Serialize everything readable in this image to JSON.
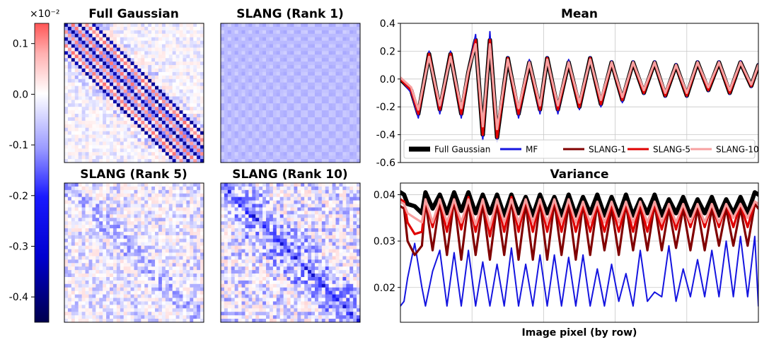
{
  "colors": {
    "full_gaussian": "#000000",
    "mf": "#1515e0",
    "slang_1": "#800000",
    "slang_5": "#e00000",
    "slang_10": "#f7a0a0",
    "heatmap_low": "#00004d",
    "heatmap_mid": "#ffffff",
    "heatmap_high": "#ff5555"
  },
  "chart_data": [
    {
      "type": "heatmap",
      "panel": "colorbar",
      "scale_label": "×10⁻²",
      "range": [
        -0.45,
        0.14
      ],
      "ticks": [
        0.1,
        0.0,
        -0.1,
        -0.2,
        -0.3,
        -0.4
      ],
      "tick_labels": [
        "0.1",
        "0.0",
        "-0.1",
        "-0.2",
        "-0.3",
        "-0.4"
      ]
    },
    {
      "type": "heatmap",
      "panel": "full",
      "title": "Full Gaussian",
      "pattern": "strong-diagonal-bands"
    },
    {
      "type": "heatmap",
      "panel": "rank1",
      "title": "SLANG (Rank 1)",
      "pattern": "faint-grid"
    },
    {
      "type": "heatmap",
      "panel": "rank5",
      "title": "SLANG (Rank 5)",
      "pattern": "weak-diagonal"
    },
    {
      "type": "heatmap",
      "panel": "rank10",
      "title": "SLANG (Rank 10)",
      "pattern": "medium-diagonal"
    },
    {
      "type": "line",
      "panel": "mean",
      "title": "Mean",
      "ylim": [
        -0.6,
        0.4
      ],
      "yticks": [
        0.4,
        0.2,
        0.0,
        -0.2,
        -0.4,
        -0.6
      ],
      "ytick_labels": [
        "0.4",
        "0.2",
        "0.0",
        "-0.2",
        "-0.4",
        "-0.6"
      ],
      "xlim": [
        0,
        100
      ],
      "grid": true,
      "legend_position": "lower-center",
      "series_order": [
        "Full Gaussian",
        "MF",
        "SLANG-1",
        "SLANG-5",
        "SLANG-10"
      ],
      "x": [
        0,
        3,
        5,
        8,
        11,
        14,
        17,
        19,
        21,
        23,
        25,
        27,
        30,
        33,
        36,
        39,
        41,
        44,
        47,
        50,
        53,
        56,
        59,
        62,
        65,
        68,
        71,
        74,
        77,
        80,
        83,
        86,
        89,
        92,
        95,
        98,
        100
      ],
      "series": [
        {
          "name": "Full Gaussian",
          "values": [
            0.0,
            -0.08,
            -0.25,
            0.18,
            -0.22,
            0.18,
            -0.25,
            0.05,
            0.28,
            -0.4,
            0.28,
            -0.42,
            0.15,
            -0.25,
            0.12,
            -0.22,
            0.15,
            -0.22,
            0.12,
            -0.2,
            0.15,
            -0.18,
            0.12,
            -0.15,
            0.12,
            -0.1,
            0.12,
            -0.12,
            0.1,
            -0.12,
            0.12,
            -0.08,
            0.12,
            -0.1,
            0.12,
            -0.05,
            0.1
          ]
        },
        {
          "name": "MF",
          "values": [
            0.0,
            -0.1,
            -0.28,
            0.2,
            -0.25,
            0.2,
            -0.28,
            0.06,
            0.32,
            -0.44,
            0.34,
            -0.45,
            0.16,
            -0.28,
            0.14,
            -0.25,
            0.16,
            -0.25,
            0.14,
            -0.22,
            0.16,
            -0.2,
            0.13,
            -0.17,
            0.13,
            -0.11,
            0.13,
            -0.13,
            0.11,
            -0.13,
            0.13,
            -0.09,
            0.13,
            -0.11,
            0.13,
            -0.06,
            0.11
          ]
        },
        {
          "name": "SLANG-1",
          "values": [
            0.0,
            -0.08,
            -0.25,
            0.18,
            -0.22,
            0.18,
            -0.25,
            0.05,
            0.28,
            -0.4,
            0.28,
            -0.42,
            0.15,
            -0.25,
            0.12,
            -0.22,
            0.15,
            -0.22,
            0.12,
            -0.2,
            0.15,
            -0.18,
            0.12,
            -0.15,
            0.12,
            -0.1,
            0.12,
            -0.12,
            0.1,
            -0.12,
            0.12,
            -0.08,
            0.12,
            -0.1,
            0.12,
            -0.05,
            0.1
          ]
        },
        {
          "name": "SLANG-5",
          "values": [
            0.0,
            -0.08,
            -0.25,
            0.18,
            -0.22,
            0.18,
            -0.25,
            0.05,
            0.28,
            -0.4,
            0.28,
            -0.42,
            0.15,
            -0.25,
            0.12,
            -0.22,
            0.15,
            -0.22,
            0.12,
            -0.2,
            0.15,
            -0.18,
            0.12,
            -0.15,
            0.12,
            -0.1,
            0.12,
            -0.12,
            0.1,
            -0.12,
            0.12,
            -0.08,
            0.12,
            -0.1,
            0.12,
            -0.05,
            0.1
          ]
        },
        {
          "name": "SLANG-10",
          "values": [
            0.01,
            -0.06,
            -0.22,
            0.16,
            -0.19,
            0.16,
            -0.21,
            0.06,
            0.25,
            -0.34,
            0.25,
            -0.36,
            0.14,
            -0.21,
            0.12,
            -0.19,
            0.14,
            -0.19,
            0.12,
            -0.17,
            0.14,
            -0.15,
            0.12,
            -0.13,
            0.12,
            -0.08,
            0.12,
            -0.1,
            0.1,
            -0.1,
            0.12,
            -0.06,
            0.12,
            -0.08,
            0.12,
            -0.04,
            0.1
          ]
        }
      ]
    },
    {
      "type": "line",
      "panel": "variance",
      "title": "Variance",
      "xlabel": "Image pixel (by row)",
      "ylim": [
        0.0125,
        0.0425
      ],
      "yticks": [
        0.04,
        0.03,
        0.02
      ],
      "ytick_labels": [
        "0.04",
        "0.03",
        "0.02"
      ],
      "xlim": [
        0,
        100
      ],
      "grid": true,
      "x": [
        0,
        1,
        2,
        4,
        6,
        7,
        9,
        11,
        13,
        15,
        17,
        19,
        21,
        23,
        25,
        27,
        29,
        31,
        33,
        35,
        37,
        39,
        41,
        43,
        45,
        47,
        49,
        51,
        53,
        55,
        57,
        59,
        61,
        63,
        65,
        67,
        69,
        71,
        73,
        75,
        77,
        79,
        81,
        83,
        85,
        87,
        89,
        91,
        93,
        95,
        97,
        99,
        100
      ],
      "series": [
        {
          "name": "Full Gaussian",
          "values": [
            0.0405,
            0.04,
            0.038,
            0.0375,
            0.036,
            0.0405,
            0.037,
            0.04,
            0.036,
            0.0405,
            0.0365,
            0.0405,
            0.036,
            0.04,
            0.036,
            0.04,
            0.0355,
            0.04,
            0.036,
            0.0395,
            0.0355,
            0.04,
            0.036,
            0.0395,
            0.0355,
            0.04,
            0.0355,
            0.0395,
            0.036,
            0.04,
            0.0355,
            0.0395,
            0.0355,
            0.04,
            0.0355,
            0.039,
            0.036,
            0.04,
            0.0355,
            0.039,
            0.036,
            0.0395,
            0.0355,
            0.039,
            0.036,
            0.0395,
            0.0355,
            0.039,
            0.036,
            0.0395,
            0.036,
            0.0405,
            0.04
          ]
        },
        {
          "name": "MF",
          "values": [
            0.016,
            0.017,
            0.022,
            0.0295,
            0.02,
            0.016,
            0.0235,
            0.028,
            0.016,
            0.0275,
            0.016,
            0.028,
            0.016,
            0.0255,
            0.016,
            0.025,
            0.016,
            0.0285,
            0.016,
            0.025,
            0.016,
            0.027,
            0.016,
            0.027,
            0.016,
            0.0265,
            0.016,
            0.027,
            0.016,
            0.024,
            0.016,
            0.025,
            0.017,
            0.023,
            0.016,
            0.028,
            0.017,
            0.019,
            0.018,
            0.029,
            0.017,
            0.024,
            0.018,
            0.026,
            0.018,
            0.028,
            0.018,
            0.03,
            0.018,
            0.031,
            0.018,
            0.031,
            0.016
          ]
        },
        {
          "name": "SLANG-1",
          "values": [
            0.0375,
            0.037,
            0.03,
            0.027,
            0.029,
            0.0385,
            0.028,
            0.0385,
            0.027,
            0.039,
            0.026,
            0.0385,
            0.027,
            0.038,
            0.026,
            0.038,
            0.027,
            0.039,
            0.026,
            0.038,
            0.026,
            0.0385,
            0.026,
            0.0385,
            0.027,
            0.038,
            0.026,
            0.038,
            0.027,
            0.038,
            0.028,
            0.037,
            0.027,
            0.038,
            0.028,
            0.0375,
            0.028,
            0.038,
            0.028,
            0.037,
            0.0285,
            0.037,
            0.028,
            0.037,
            0.028,
            0.037,
            0.029,
            0.037,
            0.029,
            0.037,
            0.029,
            0.038,
            0.037
          ]
        },
        {
          "name": "SLANG-5",
          "values": [
            0.039,
            0.0385,
            0.034,
            0.0315,
            0.032,
            0.039,
            0.033,
            0.039,
            0.032,
            0.039,
            0.0325,
            0.0395,
            0.032,
            0.039,
            0.031,
            0.039,
            0.032,
            0.0395,
            0.032,
            0.039,
            0.032,
            0.039,
            0.032,
            0.039,
            0.032,
            0.039,
            0.032,
            0.038,
            0.032,
            0.038,
            0.032,
            0.038,
            0.032,
            0.038,
            0.032,
            0.038,
            0.032,
            0.038,
            0.0325,
            0.038,
            0.0325,
            0.038,
            0.033,
            0.038,
            0.033,
            0.038,
            0.033,
            0.038,
            0.033,
            0.038,
            0.033,
            0.0385,
            0.038
          ]
        },
        {
          "name": "SLANG-10",
          "values": [
            0.0385,
            0.038,
            0.036,
            0.035,
            0.034,
            0.039,
            0.034,
            0.039,
            0.034,
            0.039,
            0.034,
            0.039,
            0.0335,
            0.039,
            0.033,
            0.039,
            0.034,
            0.039,
            0.034,
            0.039,
            0.034,
            0.039,
            0.034,
            0.039,
            0.034,
            0.039,
            0.034,
            0.0385,
            0.034,
            0.0385,
            0.034,
            0.0385,
            0.034,
            0.0385,
            0.034,
            0.0385,
            0.034,
            0.0385,
            0.034,
            0.038,
            0.034,
            0.038,
            0.034,
            0.038,
            0.034,
            0.038,
            0.034,
            0.038,
            0.035,
            0.038,
            0.035,
            0.0385,
            0.038
          ]
        }
      ]
    }
  ]
}
